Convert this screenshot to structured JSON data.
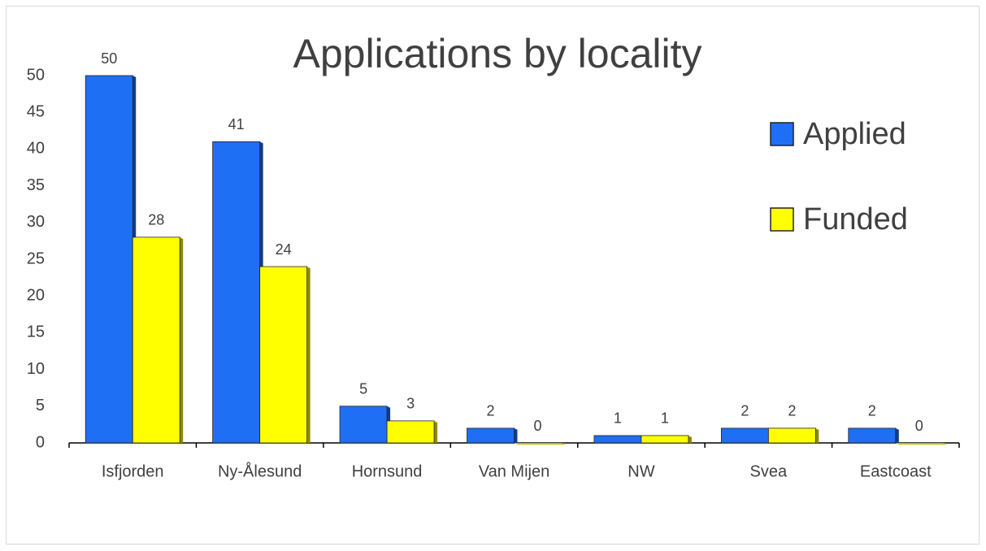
{
  "chart_data": {
    "type": "bar",
    "title": "Applications by locality",
    "categories": [
      "Isfjorden",
      "Ny-Ålesund",
      "Hornsund",
      "Van Mijen",
      "NW",
      "Svea",
      "Eastcoast"
    ],
    "series": [
      {
        "name": "Applied",
        "color": "#1f6ff5",
        "values": [
          50,
          41,
          5,
          2,
          1,
          2,
          2
        ]
      },
      {
        "name": "Funded",
        "color": "#ffff00",
        "values": [
          28,
          24,
          3,
          0,
          1,
          2,
          0
        ]
      }
    ],
    "ylim": [
      0,
      50
    ],
    "yticks": [
      0,
      5,
      10,
      15,
      20,
      25,
      30,
      35,
      40,
      45,
      50
    ],
    "legend": "right"
  }
}
